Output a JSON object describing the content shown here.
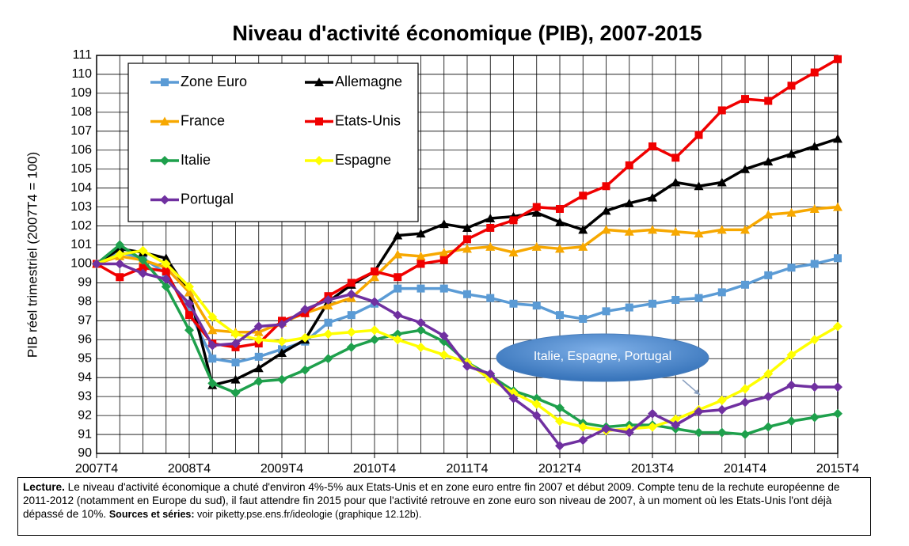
{
  "chart_data": {
    "type": "line",
    "title": "Niveau d'activité économique (PIB), 2007-2015",
    "y_label": "PIB réel trimestriel (2007T4 = 100)",
    "categories": [
      "2007T4",
      null,
      null,
      null,
      "2008T4",
      null,
      null,
      null,
      "2009T4",
      null,
      null,
      null,
      "2010T4",
      null,
      null,
      null,
      "2011T4",
      null,
      null,
      null,
      "2012T4",
      null,
      null,
      null,
      "2013T4",
      null,
      null,
      null,
      "2014T4",
      null,
      null,
      null,
      "2015T4"
    ],
    "ylim": [
      90,
      111
    ],
    "yticks": [
      90,
      91,
      92,
      93,
      94,
      95,
      96,
      97,
      98,
      99,
      100,
      101,
      102,
      103,
      104,
      105,
      106,
      107,
      108,
      109,
      110,
      111
    ],
    "grid": true,
    "legend": "upper left",
    "series": [
      {
        "name": "Zone Euro",
        "color": "#5b9bd5",
        "marker": "square",
        "values": [
          100,
          100.6,
          100.3,
          99.5,
          97.5,
          95.0,
          94.8,
          95.1,
          95.5,
          95.9,
          96.9,
          97.3,
          97.9,
          98.7,
          98.7,
          98.7,
          98.4,
          98.2,
          97.9,
          97.8,
          97.3,
          97.1,
          97.5,
          97.7,
          97.9,
          98.1,
          98.2,
          98.5,
          98.9,
          99.4,
          99.8,
          100.0,
          100.3
        ]
      },
      {
        "name": "Allemagne",
        "color": "#000000",
        "marker": "triangle",
        "values": [
          100,
          100.8,
          100.6,
          100.3,
          98.5,
          93.6,
          93.9,
          94.5,
          95.3,
          96.0,
          98.0,
          98.9,
          99.6,
          101.5,
          101.6,
          102.1,
          101.9,
          102.4,
          102.5,
          102.7,
          102.2,
          101.8,
          102.8,
          103.2,
          103.5,
          104.3,
          104.1,
          104.3,
          105.0,
          105.4,
          105.8,
          106.2,
          106.6
        ]
      },
      {
        "name": "France",
        "color": "#f7a800",
        "marker": "triangle",
        "values": [
          100,
          100.4,
          100.2,
          99.8,
          98.5,
          96.5,
          96.4,
          96.4,
          96.9,
          97.4,
          97.8,
          98.2,
          99.3,
          100.5,
          100.4,
          100.6,
          100.8,
          100.9,
          100.6,
          100.9,
          100.8,
          100.9,
          101.8,
          101.7,
          101.8,
          101.7,
          101.6,
          101.8,
          101.8,
          102.6,
          102.7,
          102.9,
          103.0
        ]
      },
      {
        "name": "Etats-Unis",
        "color": "#f00000",
        "marker": "square",
        "values": [
          100,
          99.3,
          99.8,
          99.6,
          97.3,
          95.8,
          95.6,
          95.8,
          97.0,
          97.4,
          98.3,
          99.0,
          99.6,
          99.3,
          100.0,
          100.2,
          101.3,
          101.9,
          102.3,
          103.0,
          102.9,
          103.6,
          104.1,
          105.2,
          106.2,
          105.6,
          106.8,
          108.1,
          108.7,
          108.6,
          109.4,
          110.1,
          110.8
        ]
      },
      {
        "name": "Italie",
        "color": "#1ea04c",
        "marker": "diamond",
        "values": [
          100,
          101.0,
          100.2,
          98.8,
          96.5,
          93.7,
          93.2,
          93.8,
          93.9,
          94.4,
          95.0,
          95.6,
          96.0,
          96.3,
          96.5,
          95.9,
          94.8,
          94.1,
          93.3,
          92.9,
          92.4,
          91.6,
          91.4,
          91.5,
          91.5,
          91.3,
          91.1,
          91.1,
          91.0,
          91.4,
          91.7,
          91.9,
          92.1
        ]
      },
      {
        "name": "Espagne",
        "color": "#ffff00",
        "marker": "diamond",
        "values": [
          100,
          100.5,
          100.7,
          100.0,
          98.8,
          97.2,
          96.3,
          96.0,
          95.9,
          96.1,
          96.3,
          96.4,
          96.5,
          96.0,
          95.6,
          95.2,
          94.8,
          93.9,
          93.2,
          92.6,
          91.7,
          91.4,
          91.2,
          91.3,
          91.4,
          91.8,
          92.3,
          92.8,
          93.4,
          94.2,
          95.2,
          96.0,
          96.7
        ]
      },
      {
        "name": "Portugal",
        "color": "#7030a0",
        "marker": "diamond",
        "values": [
          100,
          100.0,
          99.5,
          99.2,
          97.9,
          95.7,
          95.8,
          96.7,
          96.8,
          97.6,
          98.1,
          98.4,
          98.0,
          97.3,
          96.9,
          96.2,
          94.6,
          94.2,
          92.9,
          92.0,
          90.4,
          90.7,
          91.3,
          91.1,
          92.1,
          91.5,
          92.2,
          92.3,
          92.7,
          93.0,
          93.6,
          93.5,
          93.5
        ]
      }
    ],
    "annotation": "Italie, Espagne, Portugal",
    "note": {
      "label": "Lecture.",
      "text": " Le niveau d'activité économique a chuté d'environ 4%-5% aux Etats-Unis et en zone euro entre fin 2007 et début 2009. Compte tenu de la rechute européenne de 2011-2012 (notamment en Europe du sud), il faut attendre fin 2015 pour que l'activité retrouve en zone euro son niveau de 2007, à un moment où les Etats-Unis l'ont déjà dépassé de 10%. ",
      "sources_label": "Sources et séries:",
      "sources": " voir piketty.pse.ens.fr/ideologie (graphique 12.12b)."
    }
  }
}
